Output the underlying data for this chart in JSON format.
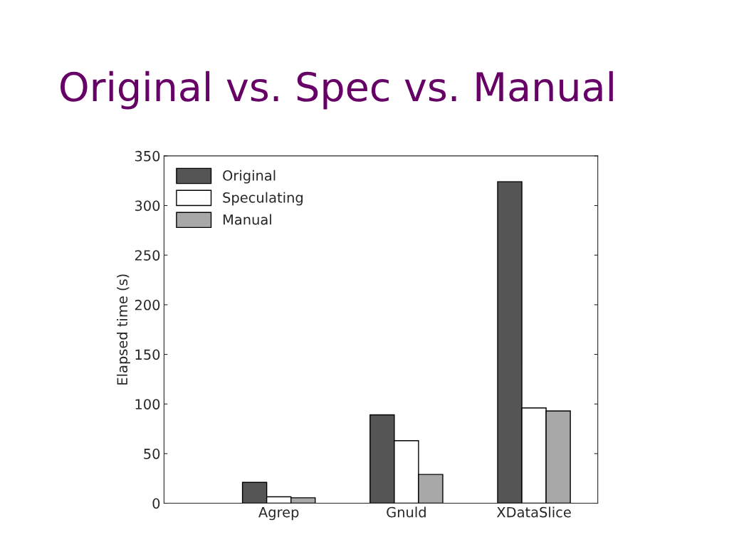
{
  "chart_data": {
    "type": "bar",
    "title": "Original vs. Spec vs. Manual",
    "ylabel": "Elapsed time (s)",
    "categories": [
      "Agrep",
      "Gnuld",
      "XDataSlice"
    ],
    "series": [
      {
        "name": "Original",
        "color": "#555555",
        "values": [
          21,
          89,
          324
        ]
      },
      {
        "name": "Speculating",
        "color": "#ffffff",
        "values": [
          6.5,
          63,
          96
        ]
      },
      {
        "name": "Manual",
        "color": "#a8a8a8",
        "values": [
          5.5,
          29,
          93
        ]
      }
    ],
    "ylim": [
      0,
      350
    ],
    "yticks": [
      0,
      50,
      100,
      150,
      200,
      250,
      300,
      350
    ],
    "grid": false,
    "legend": "top left"
  }
}
